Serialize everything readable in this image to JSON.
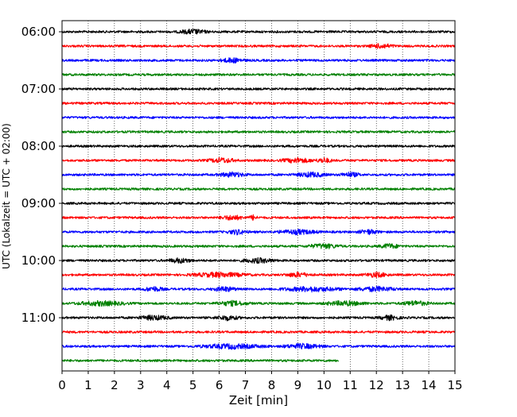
{
  "chart_data": {
    "type": "line",
    "title": "",
    "xlabel": "Zeit  [min]",
    "ylabel": "UTC (Lokalzeit = UTC + 02:00)",
    "xlim": [
      0,
      15
    ],
    "x_ticks": [
      "0",
      "1",
      "2",
      "3",
      "4",
      "5",
      "6",
      "7",
      "8",
      "9",
      "10",
      "11",
      "12",
      "13",
      "14",
      "15"
    ],
    "y_ticks": [
      "06:00",
      "07:00",
      "08:00",
      "09:00",
      "10:00",
      "11:00"
    ],
    "grid": "vertical dotted at each minute",
    "legend": "none",
    "colors": [
      "#000000",
      "#ff0000",
      "#0000ff",
      "#008000"
    ],
    "traces": [
      {
        "start": "06:00",
        "color": "#000000",
        "x_end": 15,
        "bursts": [
          [
            5.0,
            0.7
          ]
        ]
      },
      {
        "start": "06:15",
        "color": "#ff0000",
        "x_end": 15,
        "bursts": [
          [
            12.2,
            0.6
          ]
        ]
      },
      {
        "start": "06:30",
        "color": "#0000ff",
        "x_end": 15,
        "bursts": [
          [
            6.5,
            0.6
          ]
        ]
      },
      {
        "start": "06:45",
        "color": "#008000",
        "x_end": 15,
        "bursts": []
      },
      {
        "start": "07:00",
        "color": "#000000",
        "x_end": 15,
        "bursts": []
      },
      {
        "start": "07:15",
        "color": "#ff0000",
        "x_end": 15,
        "bursts": []
      },
      {
        "start": "07:30",
        "color": "#0000ff",
        "x_end": 15,
        "bursts": []
      },
      {
        "start": "07:45",
        "color": "#008000",
        "x_end": 15,
        "bursts": []
      },
      {
        "start": "08:00",
        "color": "#000000",
        "x_end": 15,
        "bursts": []
      },
      {
        "start": "08:15",
        "color": "#ff0000",
        "x_end": 15,
        "bursts": [
          [
            6.1,
            0.7
          ],
          [
            9.0,
            0.8
          ],
          [
            10.0,
            0.4
          ]
        ]
      },
      {
        "start": "08:30",
        "color": "#0000ff",
        "x_end": 15,
        "bursts": [
          [
            6.5,
            0.7
          ],
          [
            9.5,
            0.8
          ],
          [
            11.0,
            0.5
          ]
        ]
      },
      {
        "start": "08:45",
        "color": "#008000",
        "x_end": 15,
        "bursts": []
      },
      {
        "start": "09:00",
        "color": "#000000",
        "x_end": 15,
        "bursts": []
      },
      {
        "start": "09:15",
        "color": "#ff0000",
        "x_end": 15,
        "bursts": [
          [
            6.5,
            0.6
          ],
          [
            7.3,
            0.2
          ]
        ]
      },
      {
        "start": "09:30",
        "color": "#0000ff",
        "x_end": 15,
        "bursts": [
          [
            6.7,
            0.5
          ],
          [
            9.0,
            1.0
          ],
          [
            11.7,
            0.5
          ]
        ]
      },
      {
        "start": "09:45",
        "color": "#008000",
        "x_end": 15,
        "bursts": [
          [
            10.0,
            0.8
          ],
          [
            12.5,
            0.5
          ]
        ]
      },
      {
        "start": "10:00",
        "color": "#000000",
        "x_end": 15,
        "bursts": [
          [
            4.5,
            0.6
          ],
          [
            7.5,
            0.8
          ]
        ]
      },
      {
        "start": "10:15",
        "color": "#ff0000",
        "x_end": 15,
        "bursts": [
          [
            6.0,
            1.4
          ],
          [
            9.0,
            0.6
          ],
          [
            12.0,
            0.6
          ]
        ]
      },
      {
        "start": "10:30",
        "color": "#0000ff",
        "x_end": 15,
        "bursts": [
          [
            3.5,
            0.5
          ],
          [
            6.2,
            0.6
          ],
          [
            9.5,
            1.5
          ],
          [
            12.0,
            1.0
          ]
        ]
      },
      {
        "start": "10:45",
        "color": "#008000",
        "x_end": 15,
        "bursts": [
          [
            1.5,
            1.2
          ],
          [
            6.5,
            0.8
          ],
          [
            10.8,
            1.0
          ],
          [
            13.5,
            0.7
          ]
        ]
      },
      {
        "start": "11:00",
        "color": "#000000",
        "x_end": 15,
        "bursts": [
          [
            3.5,
            0.8
          ],
          [
            6.3,
            0.6
          ],
          [
            12.5,
            0.5
          ]
        ]
      },
      {
        "start": "11:15",
        "color": "#ff0000",
        "x_end": 15,
        "bursts": []
      },
      {
        "start": "11:30",
        "color": "#0000ff",
        "x_end": 15,
        "bursts": [
          [
            6.5,
            1.6
          ],
          [
            9.2,
            1.0
          ]
        ]
      },
      {
        "start": "11:45",
        "color": "#008000",
        "x_end": 10.55,
        "bursts": []
      }
    ]
  }
}
